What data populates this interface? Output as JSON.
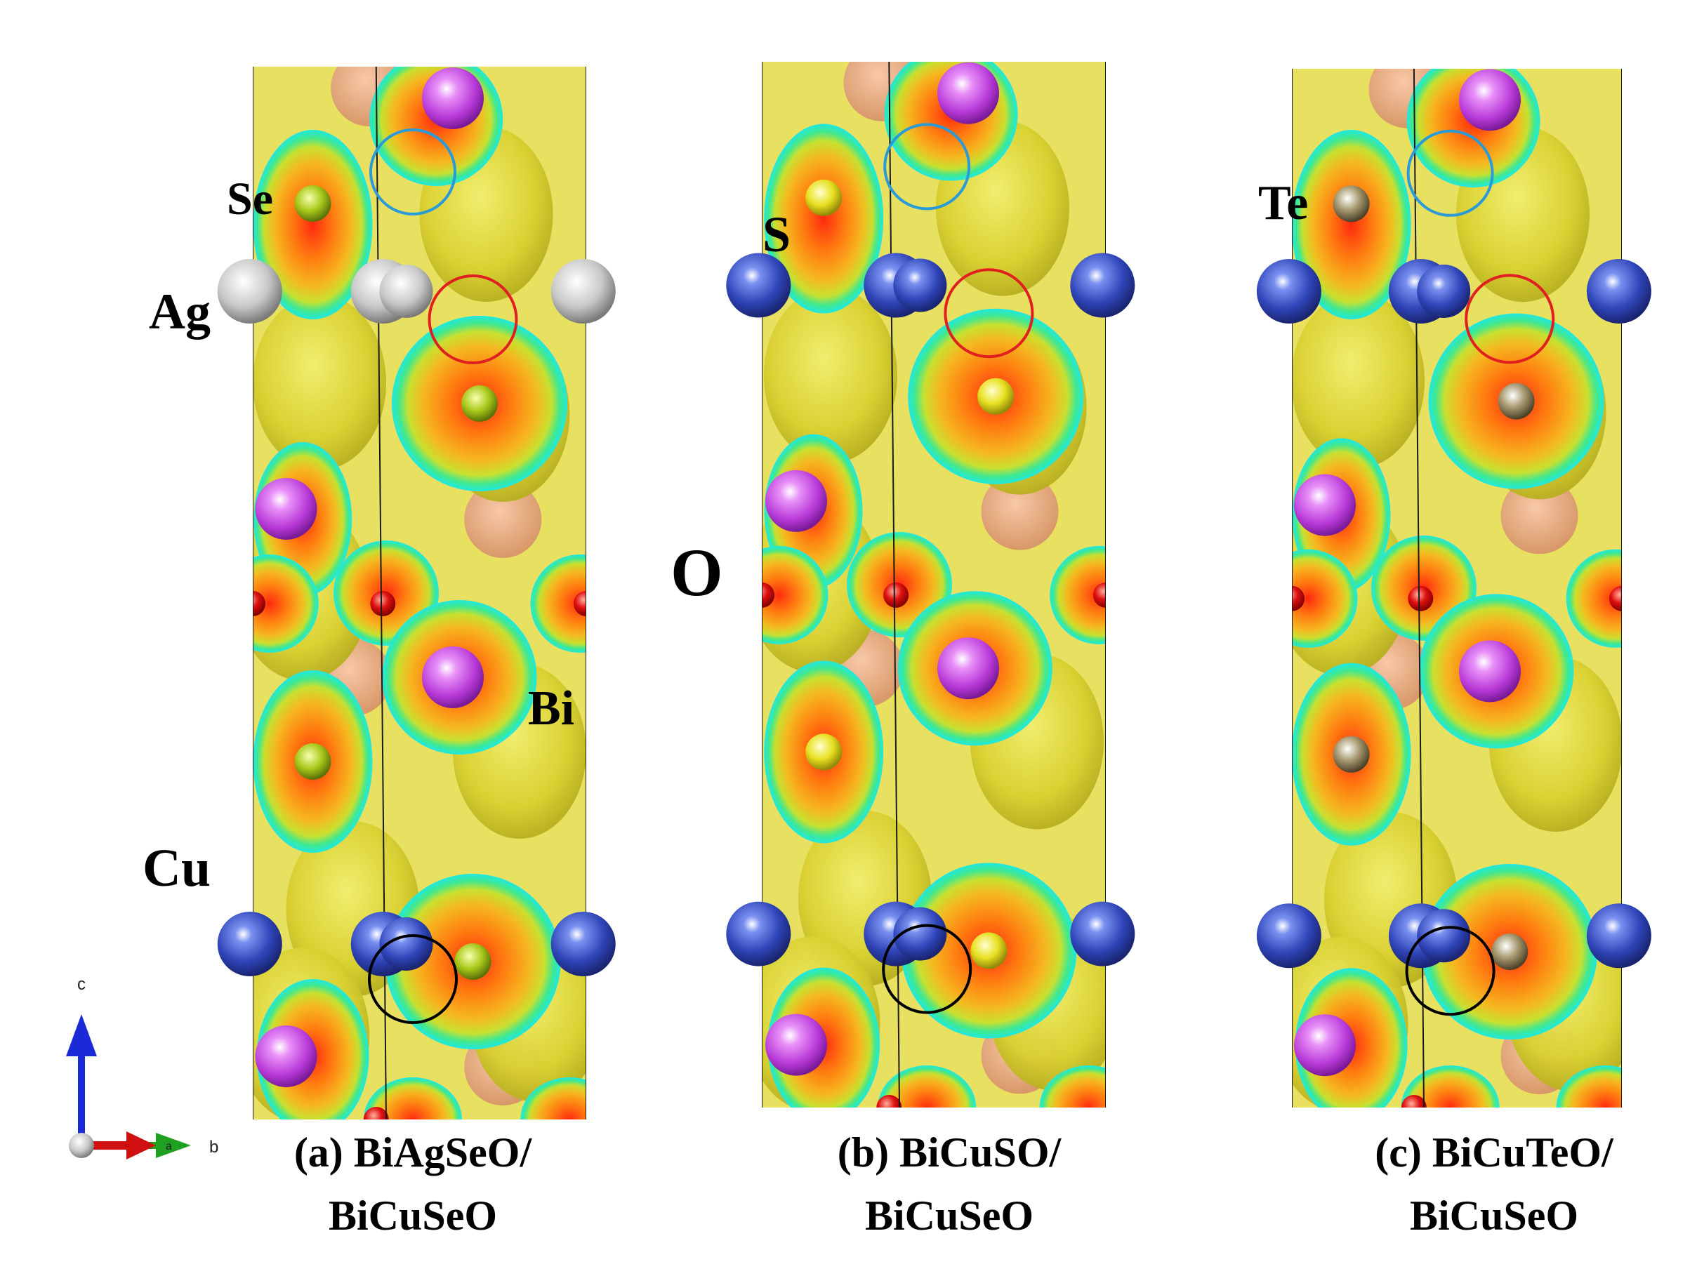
{
  "panels": [
    {
      "id": "a",
      "caption_line1": "(a) BiAgSeO/",
      "caption_line2": "BiCuSeO",
      "chalcogen_label": "Se",
      "interface_metal_label": "Ag",
      "chalcogen_color": "#a8c81a",
      "interface_metal_color": "#c8c8c8"
    },
    {
      "id": "b",
      "caption_line1": "(b) BiCuSO/",
      "caption_line2": "BiCuSeO",
      "chalcogen_label": "S",
      "chalcogen_color": "#e8e020",
      "interface_metal_color": "#2f45b8"
    },
    {
      "id": "c",
      "caption_line1": "(c) BiCuTeO/",
      "caption_line2": "BiCuSeO",
      "chalcogen_label": "Te",
      "chalcogen_color": "#8c8060",
      "interface_metal_color": "#2f45b8"
    }
  ],
  "shared_labels": {
    "oxygen": "O",
    "bismuth": "Bi",
    "copper": "Cu"
  },
  "atom_colors": {
    "Bi": "#b83ad8",
    "O": "#e01010",
    "Cu": "#2f45b8",
    "Se": "#a8c81a"
  },
  "highlight_circle_colors": {
    "blue": "#2a9ad8",
    "red": "#e02020",
    "black": "#000000"
  },
  "axes": {
    "c_label": "c",
    "b_label": "b",
    "a_label": "a",
    "c_color": "#1a2ad8",
    "b_color": "#20a020",
    "a_color": "#d01010"
  }
}
